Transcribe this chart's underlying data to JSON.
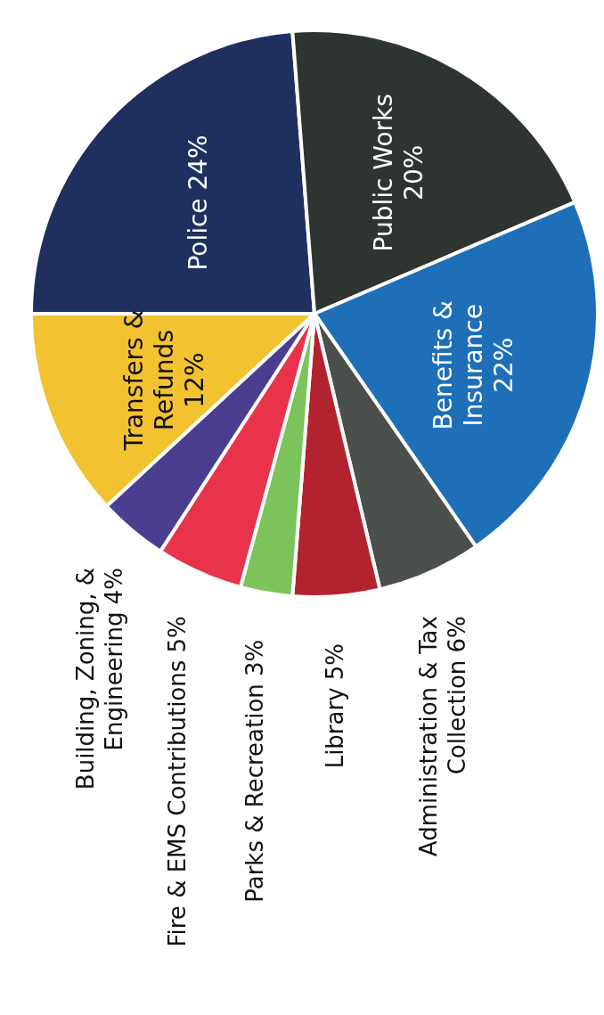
{
  "chart_data": {
    "type": "pie",
    "categories": [
      "Police",
      "Public Works",
      "Benefits & Insurance",
      "Administration & Tax Collection",
      "Library",
      "Parks & Recreation",
      "Fire & EMS Contributions",
      "Building, Zoning, & Engineering",
      "Transfers & Refunds"
    ],
    "values": [
      24,
      20,
      22,
      6,
      5,
      3,
      5,
      4,
      12
    ],
    "value_labels": [
      "24%",
      "20%",
      "22%",
      "6%",
      "5%",
      "3%",
      "5%",
      "4%",
      "12%"
    ],
    "colors": [
      "#1f2f5e",
      "#2e3430",
      "#1e6fb8",
      "#4b504c",
      "#b3232f",
      "#7dc35b",
      "#e8334b",
      "#4b3e90",
      "#f3c230"
    ]
  }
}
